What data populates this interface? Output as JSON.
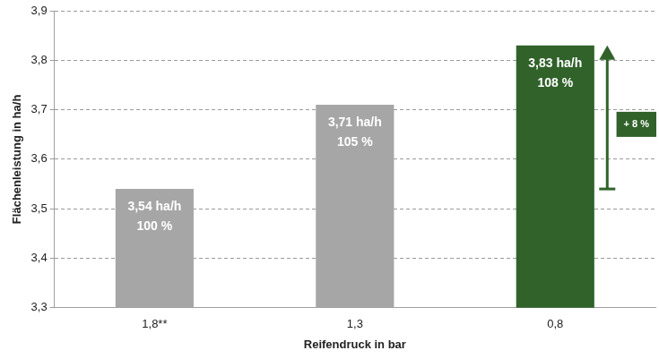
{
  "chart_data": {
    "type": "bar",
    "x_label": "Reifendruck in bar",
    "y_label": "Flächenleistung in ha/h",
    "categories": [
      "1,8**",
      "1,3",
      "0,8"
    ],
    "values": [
      3.54,
      3.71,
      3.83
    ],
    "value_labels": [
      "3,54 ha/h",
      "3,71 ha/h",
      "3,83 ha/h"
    ],
    "share_labels": [
      "100 %",
      "105 %",
      "108 %"
    ],
    "colors": [
      "#a6a6a6",
      "#a6a6a6",
      "#30622a"
    ],
    "ylim": [
      3.3,
      3.9
    ],
    "yticks": [
      {
        "value": 3.3,
        "label": "3,3"
      },
      {
        "value": 3.4,
        "label": "3,4"
      },
      {
        "value": 3.5,
        "label": "3,5"
      },
      {
        "value": 3.6,
        "label": "3,6"
      },
      {
        "value": 3.7,
        "label": "3,7"
      },
      {
        "value": 3.8,
        "label": "3,8"
      },
      {
        "value": 3.9,
        "label": "3,9"
      }
    ],
    "grid": true,
    "data_labels": true,
    "annotations": [
      {
        "text": "+ 8 %",
        "category": "0,8",
        "from": 3.54,
        "to": 3.83,
        "color": "#30622a"
      }
    ]
  }
}
